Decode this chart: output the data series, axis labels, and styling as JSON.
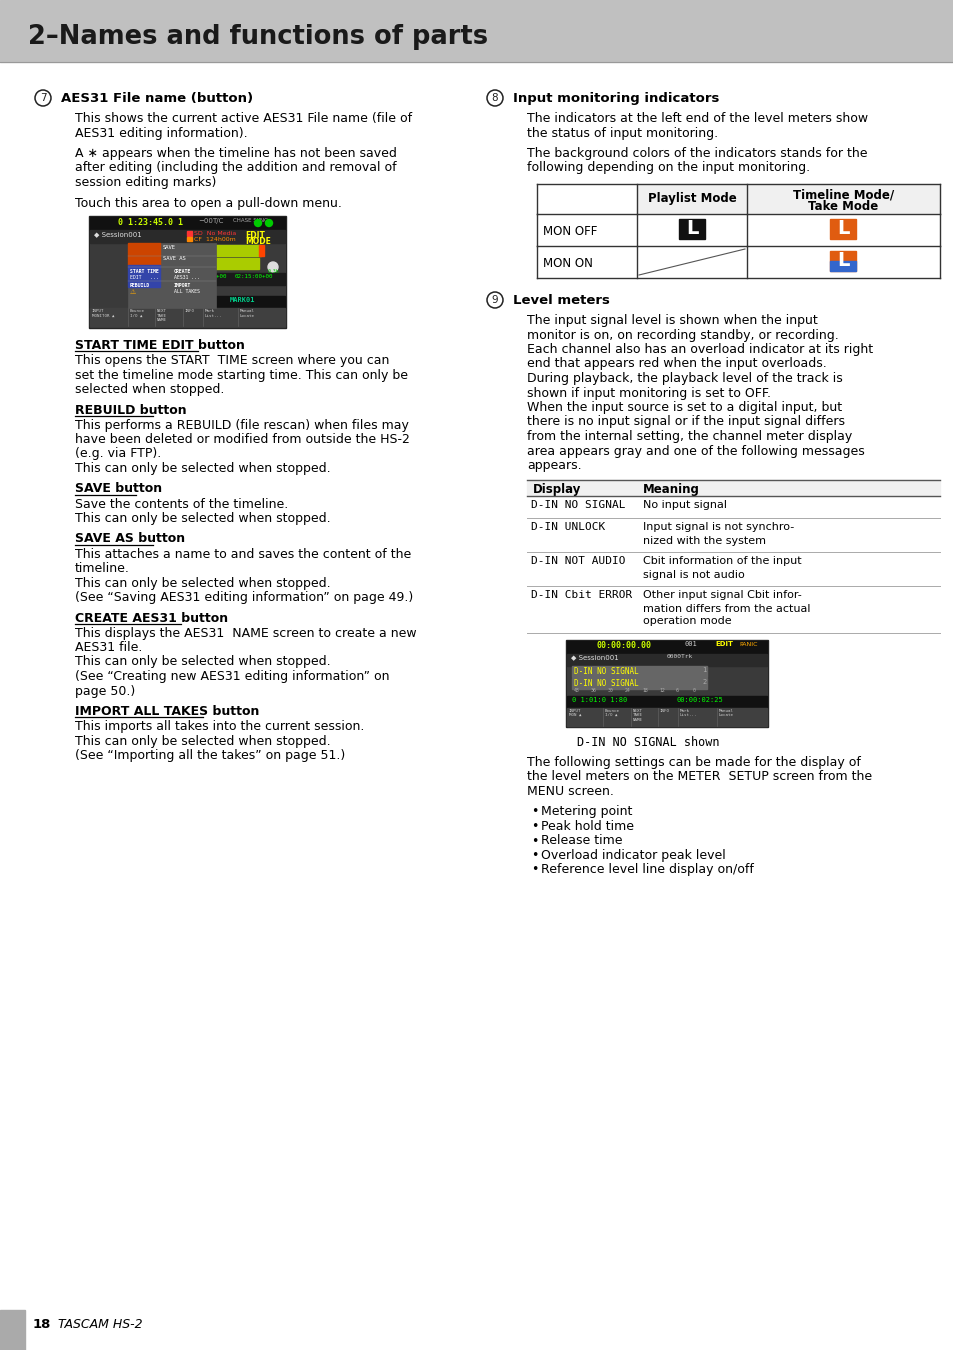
{
  "page_title": "2–Names and functions of parts",
  "header_bg": "#c0c0c0",
  "page_bg": "#ffffff",
  "left_col": {
    "section7_circle_num": "7",
    "section7_heading": "AES31 File name (button)",
    "section7_para1a": "This shows the current active AES31 File name (file of",
    "section7_para1b": "AES31 editing information).",
    "section7_para2a": "A ∗ appears when the timeline has not been saved",
    "section7_para2b": "after editing (including the addition and removal of",
    "section7_para2c": "session editing marks)",
    "section7_para3": "Touch this area to open a pull-down menu.",
    "sub1_heading": "START TIME EDIT button",
    "sub1_body_lines": [
      "This opens the START  TIME screen where you can",
      "set the timeline mode starting time. This can only be",
      "selected when stopped."
    ],
    "sub2_heading": "REBUILD button",
    "sub2_body_lines": [
      "This performs a REBUILD (file rescan) when files may",
      "have been deleted or modified from outside the HS-2",
      "(e.g. via FTP).",
      "This can only be selected when stopped."
    ],
    "sub3_heading": "SAVE button",
    "sub3_body_lines": [
      "Save the contents of the timeline.",
      "This can only be selected when stopped."
    ],
    "sub4_heading": "SAVE AS button",
    "sub4_body_lines": [
      "This attaches a name to and saves the content of the",
      "timeline.",
      "This can only be selected when stopped.",
      "(See “Saving AES31 editing information” on page 49.)"
    ],
    "sub5_heading": "CREATE AES31 button",
    "sub5_body_lines": [
      "This displays the AES31  NAME screen to create a new",
      "AES31 file.",
      "This can only be selected when stopped.",
      "(See “Creating new AES31 editing information” on",
      "page 50.)"
    ],
    "sub6_heading": "IMPORT ALL TAKES button",
    "sub6_body_lines": [
      "This imports all takes into the current session.",
      "This can only be selected when stopped.",
      "(See “Importing all the takes” on page 51.)"
    ]
  },
  "right_col": {
    "section8_circle_num": "8",
    "section8_heading": "Input monitoring indicators",
    "section8_para1a": "The indicators at the left end of the level meters show",
    "section8_para1b": "the status of input monitoring.",
    "section8_para2a": "The background colors of the indicators stands for the",
    "section8_para2b": "following depending on the input monitoring.",
    "section9_circle_num": "9",
    "section9_heading": "Level meters",
    "section9_body_lines": [
      "The input signal level is shown when the input",
      "monitor is on, on recording standby, or recording.",
      "Each channel also has an overload indicator at its right",
      "end that appears red when the input overloads.",
      "During playback, the playback level of the track is",
      "shown if input monitoring is set to OFF.",
      "When the input source is set to a digital input, but",
      "there is no input signal or if the input signal differs",
      "from the internal setting, the channel meter display",
      "area appears gray and one of the following messages",
      "appears."
    ],
    "table2_rows": [
      [
        "D-IN NO SIGNAL",
        "No input signal"
      ],
      [
        "D-IN UNLOCK",
        "Input signal is not synchro-\nnized with the system"
      ],
      [
        "D-IN NOT AUDIO",
        "Cbit information of the input\nsignal is not audio"
      ],
      [
        "D-IN Cbit ERROR",
        "Other input signal Cbit infor-\nmation differs from the actual\noperation mode"
      ]
    ],
    "caption": "D-IN NO SIGNAL shown",
    "bullet_intro_lines": [
      "The following settings can be made for the display of",
      "the level meters on the METER  SETUP screen from the",
      "MENU screen."
    ],
    "bullets": [
      "Metering point",
      "Peak hold time",
      "Release time",
      "Overload indicator peak level",
      "Reference level line display on/off"
    ]
  },
  "footer_text": "18",
  "footer_brand": "TASCAM HS-2",
  "footer_bar_color": "#aaaaaa"
}
